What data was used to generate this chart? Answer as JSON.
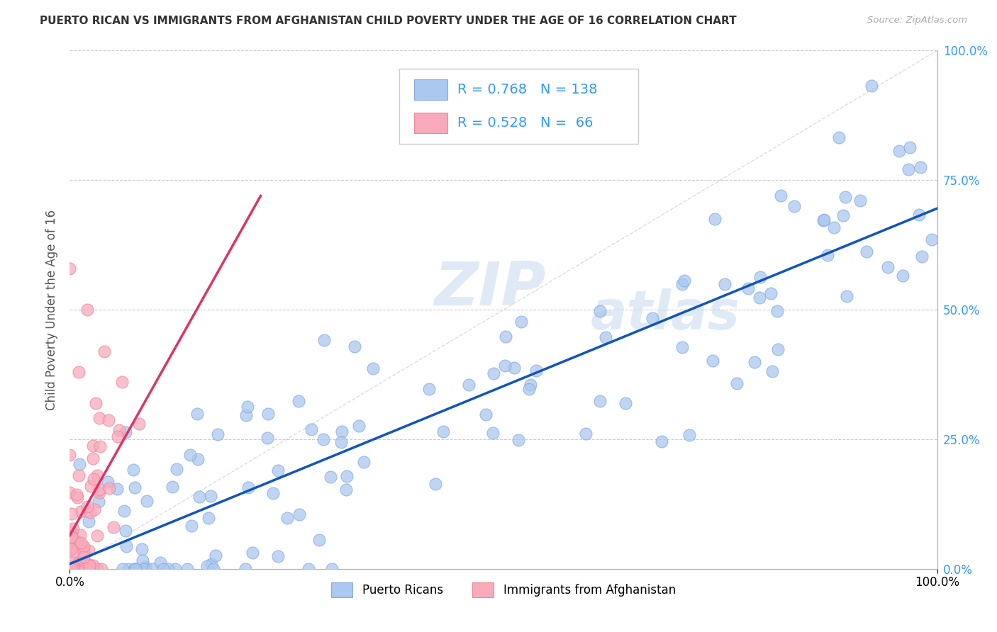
{
  "title": "PUERTO RICAN VS IMMIGRANTS FROM AFGHANISTAN CHILD POVERTY UNDER THE AGE OF 16 CORRELATION CHART",
  "source": "Source: ZipAtlas.com",
  "ylabel": "Child Poverty Under the Age of 16",
  "series1_label": "Puerto Ricans",
  "series1_color": "#aac8f0",
  "series1_edge_color": "#88aadd",
  "series1_line_color": "#1155bb",
  "series1_R": 0.768,
  "series1_N": 138,
  "series2_label": "Immigrants from Afghanistan",
  "series2_color": "#f8aabb",
  "series2_edge_color": "#ee8899",
  "series2_line_color": "#dd3366",
  "series2_R": 0.528,
  "series2_N": 66,
  "background_color": "#ffffff",
  "grid_color": "#cccccc",
  "diag_color": "#dddddd",
  "watermark_color": "#ccddf0",
  "legend_text_color": "#3399ff",
  "legend_border_color": "#cccccc",
  "right_tick_color": "#3399ff",
  "title_color": "#333333",
  "source_color": "#aaaaaa",
  "ylabel_color": "#555555"
}
